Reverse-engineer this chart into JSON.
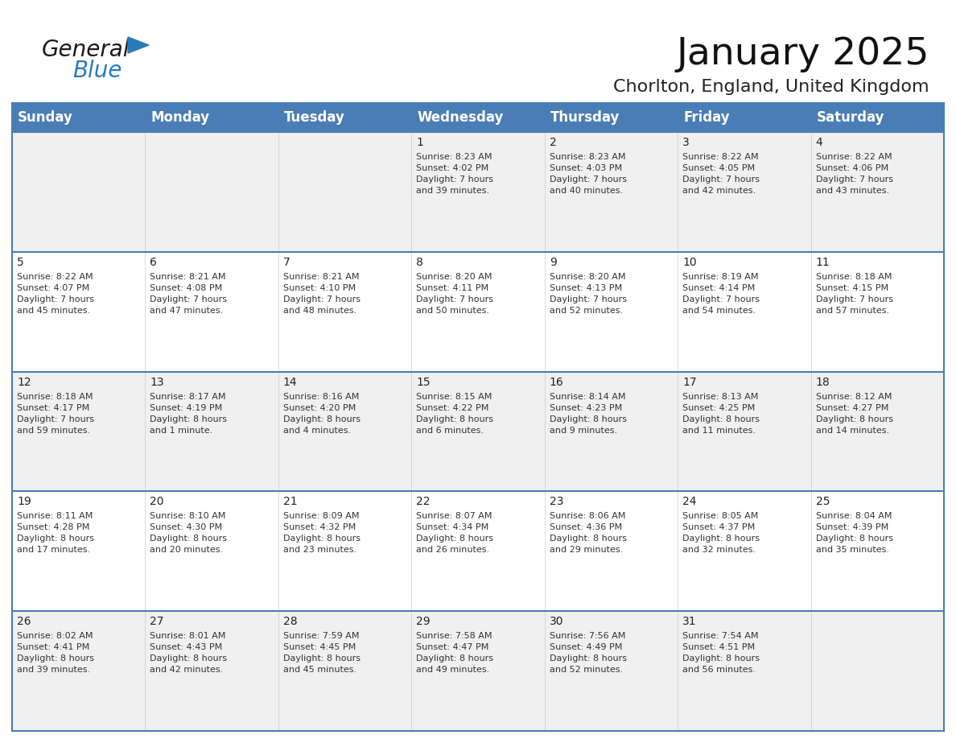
{
  "title": "January 2025",
  "subtitle": "Chorlton, England, United Kingdom",
  "header_bg": "#4A7DB5",
  "header_text_color": "#FFFFFF",
  "row_bg_odd": "#F0F0F0",
  "row_bg_even": "#FFFFFF",
  "week_sep_color": "#4A7DB5",
  "outer_border_color": "#4A7DB5",
  "cell_text_color": "#333333",
  "day_names": [
    "Sunday",
    "Monday",
    "Tuesday",
    "Wednesday",
    "Thursday",
    "Friday",
    "Saturday"
  ],
  "title_fontsize": 34,
  "subtitle_fontsize": 16,
  "header_fontsize": 12,
  "cell_fontsize": 8,
  "day_num_fontsize": 10,
  "logo_color_general": "#1A1A1A",
  "logo_color_blue": "#2B7BB9",
  "logo_triangle_color": "#2B7BB9",
  "weeks": [
    [
      {
        "day": null,
        "info": ""
      },
      {
        "day": null,
        "info": ""
      },
      {
        "day": null,
        "info": ""
      },
      {
        "day": 1,
        "info": "Sunrise: 8:23 AM\nSunset: 4:02 PM\nDaylight: 7 hours\nand 39 minutes."
      },
      {
        "day": 2,
        "info": "Sunrise: 8:23 AM\nSunset: 4:03 PM\nDaylight: 7 hours\nand 40 minutes."
      },
      {
        "day": 3,
        "info": "Sunrise: 8:22 AM\nSunset: 4:05 PM\nDaylight: 7 hours\nand 42 minutes."
      },
      {
        "day": 4,
        "info": "Sunrise: 8:22 AM\nSunset: 4:06 PM\nDaylight: 7 hours\nand 43 minutes."
      }
    ],
    [
      {
        "day": 5,
        "info": "Sunrise: 8:22 AM\nSunset: 4:07 PM\nDaylight: 7 hours\nand 45 minutes."
      },
      {
        "day": 6,
        "info": "Sunrise: 8:21 AM\nSunset: 4:08 PM\nDaylight: 7 hours\nand 47 minutes."
      },
      {
        "day": 7,
        "info": "Sunrise: 8:21 AM\nSunset: 4:10 PM\nDaylight: 7 hours\nand 48 minutes."
      },
      {
        "day": 8,
        "info": "Sunrise: 8:20 AM\nSunset: 4:11 PM\nDaylight: 7 hours\nand 50 minutes."
      },
      {
        "day": 9,
        "info": "Sunrise: 8:20 AM\nSunset: 4:13 PM\nDaylight: 7 hours\nand 52 minutes."
      },
      {
        "day": 10,
        "info": "Sunrise: 8:19 AM\nSunset: 4:14 PM\nDaylight: 7 hours\nand 54 minutes."
      },
      {
        "day": 11,
        "info": "Sunrise: 8:18 AM\nSunset: 4:15 PM\nDaylight: 7 hours\nand 57 minutes."
      }
    ],
    [
      {
        "day": 12,
        "info": "Sunrise: 8:18 AM\nSunset: 4:17 PM\nDaylight: 7 hours\nand 59 minutes."
      },
      {
        "day": 13,
        "info": "Sunrise: 8:17 AM\nSunset: 4:19 PM\nDaylight: 8 hours\nand 1 minute."
      },
      {
        "day": 14,
        "info": "Sunrise: 8:16 AM\nSunset: 4:20 PM\nDaylight: 8 hours\nand 4 minutes."
      },
      {
        "day": 15,
        "info": "Sunrise: 8:15 AM\nSunset: 4:22 PM\nDaylight: 8 hours\nand 6 minutes."
      },
      {
        "day": 16,
        "info": "Sunrise: 8:14 AM\nSunset: 4:23 PM\nDaylight: 8 hours\nand 9 minutes."
      },
      {
        "day": 17,
        "info": "Sunrise: 8:13 AM\nSunset: 4:25 PM\nDaylight: 8 hours\nand 11 minutes."
      },
      {
        "day": 18,
        "info": "Sunrise: 8:12 AM\nSunset: 4:27 PM\nDaylight: 8 hours\nand 14 minutes."
      }
    ],
    [
      {
        "day": 19,
        "info": "Sunrise: 8:11 AM\nSunset: 4:28 PM\nDaylight: 8 hours\nand 17 minutes."
      },
      {
        "day": 20,
        "info": "Sunrise: 8:10 AM\nSunset: 4:30 PM\nDaylight: 8 hours\nand 20 minutes."
      },
      {
        "day": 21,
        "info": "Sunrise: 8:09 AM\nSunset: 4:32 PM\nDaylight: 8 hours\nand 23 minutes."
      },
      {
        "day": 22,
        "info": "Sunrise: 8:07 AM\nSunset: 4:34 PM\nDaylight: 8 hours\nand 26 minutes."
      },
      {
        "day": 23,
        "info": "Sunrise: 8:06 AM\nSunset: 4:36 PM\nDaylight: 8 hours\nand 29 minutes."
      },
      {
        "day": 24,
        "info": "Sunrise: 8:05 AM\nSunset: 4:37 PM\nDaylight: 8 hours\nand 32 minutes."
      },
      {
        "day": 25,
        "info": "Sunrise: 8:04 AM\nSunset: 4:39 PM\nDaylight: 8 hours\nand 35 minutes."
      }
    ],
    [
      {
        "day": 26,
        "info": "Sunrise: 8:02 AM\nSunset: 4:41 PM\nDaylight: 8 hours\nand 39 minutes."
      },
      {
        "day": 27,
        "info": "Sunrise: 8:01 AM\nSunset: 4:43 PM\nDaylight: 8 hours\nand 42 minutes."
      },
      {
        "day": 28,
        "info": "Sunrise: 7:59 AM\nSunset: 4:45 PM\nDaylight: 8 hours\nand 45 minutes."
      },
      {
        "day": 29,
        "info": "Sunrise: 7:58 AM\nSunset: 4:47 PM\nDaylight: 8 hours\nand 49 minutes."
      },
      {
        "day": 30,
        "info": "Sunrise: 7:56 AM\nSunset: 4:49 PM\nDaylight: 8 hours\nand 52 minutes."
      },
      {
        "day": 31,
        "info": "Sunrise: 7:54 AM\nSunset: 4:51 PM\nDaylight: 8 hours\nand 56 minutes."
      },
      {
        "day": null,
        "info": ""
      }
    ]
  ]
}
